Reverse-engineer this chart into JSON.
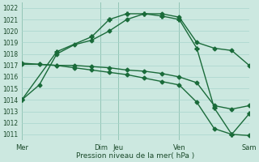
{
  "xlabel": "Pression niveau de la mer( hPa )",
  "ylim": [
    1010.5,
    1022.5
  ],
  "xlim": [
    0,
    13
  ],
  "yticks": [
    1011,
    1012,
    1013,
    1014,
    1015,
    1016,
    1017,
    1018,
    1019,
    1020,
    1021,
    1022
  ],
  "xtick_positions": [
    0,
    4.5,
    5.5,
    9,
    13
  ],
  "xtick_labels": [
    "Mer",
    "Dim",
    "Jeu",
    "Ven",
    "Sam"
  ],
  "vline_positions": [
    0,
    4.5,
    5.5,
    9,
    13
  ],
  "bg_color": "#cce8e0",
  "grid_color": "#a8d4cc",
  "line_color": "#1a6b3a",
  "series": [
    {
      "x": [
        0,
        1,
        2,
        3,
        4,
        5,
        6,
        7,
        8,
        9,
        10,
        11,
        12,
        13
      ],
      "y": [
        1014.0,
        1015.3,
        1018.0,
        1018.8,
        1019.2,
        1020.0,
        1021.0,
        1021.5,
        1021.5,
        1021.2,
        1019.0,
        1018.5,
        1018.3,
        1017.0
      ],
      "marker": "D",
      "markersize": 2.5,
      "lw": 1.0
    },
    {
      "x": [
        0,
        1,
        2,
        3,
        4,
        5,
        6,
        7,
        8,
        9,
        10,
        11,
        12,
        13
      ],
      "y": [
        1017.1,
        1017.1,
        1017.0,
        1017.0,
        1016.9,
        1016.8,
        1016.6,
        1016.5,
        1016.3,
        1016.0,
        1015.5,
        1013.5,
        1013.2,
        1013.5
      ],
      "marker": "D",
      "markersize": 2.5,
      "lw": 1.0
    },
    {
      "x": [
        0,
        1,
        2,
        3,
        4,
        5,
        6,
        7,
        8,
        9,
        10,
        11,
        12,
        13
      ],
      "y": [
        1017.2,
        1017.1,
        1017.0,
        1016.8,
        1016.6,
        1016.4,
        1016.2,
        1015.9,
        1015.6,
        1015.3,
        1013.8,
        1011.5,
        1011.0,
        1010.9
      ],
      "marker": "D",
      "markersize": 2.5,
      "lw": 1.0
    },
    {
      "x": [
        0,
        2,
        4,
        5,
        6,
        7,
        8,
        9,
        10,
        11,
        12,
        13
      ],
      "y": [
        1014.0,
        1018.2,
        1019.5,
        1021.0,
        1021.5,
        1021.5,
        1021.3,
        1021.0,
        1018.5,
        1013.3,
        1011.0,
        1012.8
      ],
      "marker": "P",
      "markersize": 3.5,
      "lw": 1.0
    }
  ]
}
